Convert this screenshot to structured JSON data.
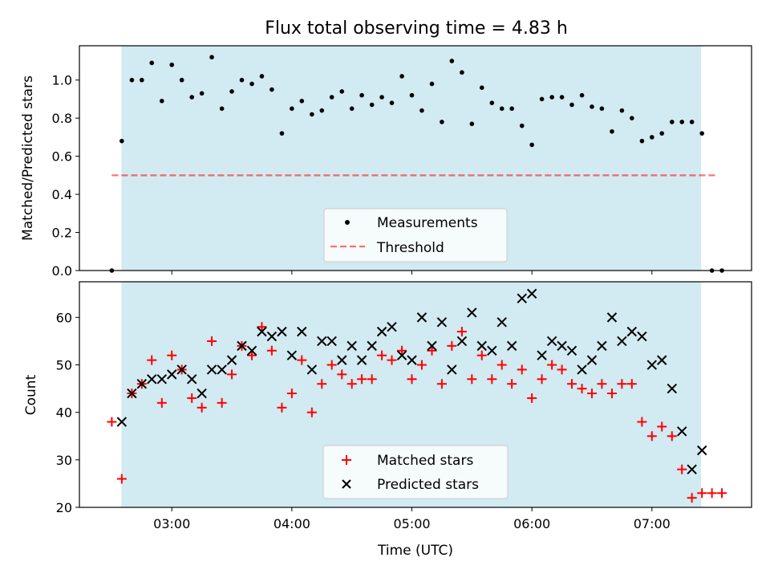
{
  "colors": {
    "band": "#add8e6",
    "measure": "#000000",
    "threshold": "#ff0000",
    "matched": "#ff0000",
    "predicted": "#000000",
    "legend_bg": "#ffffff"
  },
  "chart_data": [
    {
      "type": "scatter",
      "title": "Flux total observing time = 4.83 h",
      "xlabel": "",
      "ylabel": "Matched/Predicted stars",
      "xlim": [
        2.23,
        7.83
      ],
      "ylim": [
        0,
        1.18
      ],
      "yticks": [
        0.0,
        0.2,
        0.4,
        0.6,
        0.8,
        1.0
      ],
      "ytick_labels": [
        "0.0",
        "0.2",
        "0.4",
        "0.6",
        "0.8",
        "1.0"
      ],
      "xticks": [
        3,
        4,
        5,
        6,
        7
      ],
      "observing_window": [
        2.58,
        7.41
      ],
      "threshold": {
        "value": 0.5,
        "x_range": [
          2.5,
          7.55
        ]
      },
      "legend": {
        "position": "lower-center",
        "entries": [
          "Measurements",
          "Threshold"
        ]
      },
      "series": [
        {
          "name": "Measurements",
          "marker": "dot",
          "x": [
            2.5,
            2.583,
            2.667,
            2.75,
            2.833,
            2.917,
            3.0,
            3.083,
            3.167,
            3.25,
            3.333,
            3.417,
            3.5,
            3.583,
            3.667,
            3.75,
            3.833,
            3.917,
            4.0,
            4.083,
            4.167,
            4.25,
            4.333,
            4.417,
            4.5,
            4.583,
            4.667,
            4.75,
            4.833,
            4.917,
            5.0,
            5.083,
            5.167,
            5.25,
            5.333,
            5.417,
            5.5,
            5.583,
            5.667,
            5.75,
            5.833,
            5.917,
            6.0,
            6.083,
            6.167,
            6.25,
            6.333,
            6.417,
            6.5,
            6.583,
            6.667,
            6.75,
            6.833,
            6.917,
            7.0,
            7.083,
            7.167,
            7.25,
            7.333,
            7.417,
            7.5,
            7.583
          ],
          "y": [
            0.0,
            0.68,
            1.0,
            1.0,
            1.09,
            0.89,
            1.08,
            1.0,
            0.91,
            0.93,
            1.12,
            0.85,
            0.94,
            1.0,
            0.98,
            1.02,
            0.95,
            0.72,
            0.85,
            0.89,
            0.82,
            0.84,
            0.91,
            0.94,
            0.85,
            0.92,
            0.87,
            0.91,
            0.88,
            1.02,
            0.92,
            0.84,
            0.98,
            0.78,
            1.1,
            1.04,
            0.77,
            0.96,
            0.88,
            0.85,
            0.85,
            0.76,
            0.66,
            0.9,
            0.91,
            0.91,
            0.87,
            0.92,
            0.86,
            0.85,
            0.73,
            0.84,
            0.8,
            0.68,
            0.7,
            0.72,
            0.78,
            0.78,
            0.78,
            0.72,
            0.0,
            0.0
          ]
        }
      ]
    },
    {
      "type": "scatter",
      "title": "",
      "xlabel": "Time (UTC)",
      "ylabel": "Count",
      "xlim": [
        2.23,
        7.83
      ],
      "ylim": [
        20,
        67.5
      ],
      "yticks": [
        20,
        30,
        40,
        50,
        60
      ],
      "ytick_labels": [
        "20",
        "30",
        "40",
        "50",
        "60"
      ],
      "xticks": [
        3,
        4,
        5,
        6,
        7
      ],
      "xtick_labels": [
        "03:00",
        "04:00",
        "05:00",
        "06:00",
        "07:00"
      ],
      "observing_window": [
        2.58,
        7.41
      ],
      "legend": {
        "position": "lower-center",
        "entries": [
          "Matched stars",
          "Predicted stars"
        ]
      },
      "series": [
        {
          "name": "Matched stars",
          "marker": "plus",
          "x": [
            2.5,
            2.583,
            2.667,
            2.75,
            2.833,
            2.917,
            3.0,
            3.083,
            3.167,
            3.25,
            3.333,
            3.417,
            3.5,
            3.583,
            3.667,
            3.75,
            3.833,
            3.917,
            4.0,
            4.083,
            4.167,
            4.25,
            4.333,
            4.417,
            4.5,
            4.583,
            4.667,
            4.75,
            4.833,
            4.917,
            5.0,
            5.083,
            5.167,
            5.25,
            5.333,
            5.417,
            5.5,
            5.583,
            5.667,
            5.75,
            5.833,
            5.917,
            6.0,
            6.083,
            6.167,
            6.25,
            6.333,
            6.417,
            6.5,
            6.583,
            6.667,
            6.75,
            6.833,
            6.917,
            7.0,
            7.083,
            7.167,
            7.25,
            7.333,
            7.417,
            7.5,
            7.583
          ],
          "y": [
            38,
            26,
            44,
            46,
            51,
            42,
            52,
            49,
            43,
            41,
            55,
            42,
            48,
            54,
            52,
            58,
            53,
            41,
            44,
            51,
            40,
            46,
            50,
            48,
            46,
            47,
            47,
            52,
            51,
            53,
            47,
            50,
            53,
            46,
            54,
            57,
            47,
            52,
            47,
            50,
            46,
            49,
            43,
            47,
            50,
            49,
            46,
            45,
            44,
            46,
            44,
            46,
            46,
            38,
            35,
            37,
            35,
            28,
            22,
            23,
            23,
            23
          ]
        },
        {
          "name": "Predicted stars",
          "marker": "x",
          "x": [
            2.583,
            2.667,
            2.75,
            2.833,
            2.917,
            3.0,
            3.083,
            3.167,
            3.25,
            3.333,
            3.417,
            3.5,
            3.583,
            3.667,
            3.75,
            3.833,
            3.917,
            4.0,
            4.083,
            4.167,
            4.25,
            4.333,
            4.417,
            4.5,
            4.583,
            4.667,
            4.75,
            4.833,
            4.917,
            5.0,
            5.083,
            5.167,
            5.25,
            5.333,
            5.417,
            5.5,
            5.583,
            5.667,
            5.75,
            5.833,
            5.917,
            6.0,
            6.083,
            6.167,
            6.25,
            6.333,
            6.417,
            6.5,
            6.583,
            6.667,
            6.75,
            6.833,
            6.917,
            7.0,
            7.083,
            7.167,
            7.25,
            7.333,
            7.417
          ],
          "y": [
            38,
            44,
            46,
            47,
            47,
            48,
            49,
            47,
            44,
            49,
            49,
            51,
            54,
            53,
            57,
            56,
            57,
            52,
            57,
            49,
            55,
            55,
            51,
            54,
            51,
            54,
            57,
            58,
            52,
            51,
            60,
            54,
            59,
            49,
            55,
            61,
            54,
            53,
            59,
            54,
            64,
            65,
            52,
            55,
            54,
            53,
            49,
            51,
            54,
            60,
            55,
            57,
            56,
            50,
            51,
            45,
            36,
            28,
            32
          ]
        }
      ]
    }
  ]
}
